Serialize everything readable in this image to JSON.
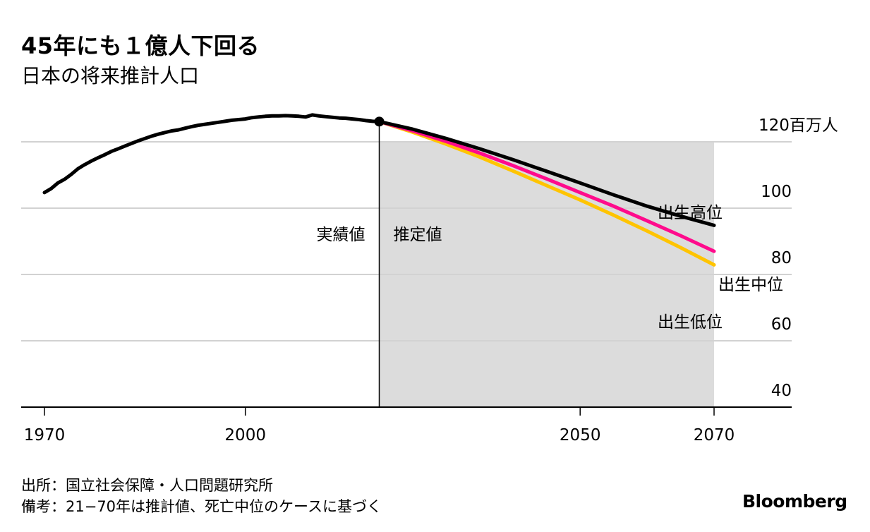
{
  "header": {
    "title": "45年にも１億人下回る",
    "subtitle": "日本の将来推計人口"
  },
  "footer": {
    "source": "出所：国立社会保障・人口問題研究所",
    "note": "備考：21−70年は推計値、死亡中位のケースに基づく",
    "brand": "Bloomberg"
  },
  "chart_data": {
    "type": "line",
    "title": "45年にも１億人下回る",
    "subtitle": "日本の将来推計人口",
    "unit_label": "120百万人",
    "y_ticks": [
      {
        "value": 120,
        "label": "120百万人"
      },
      {
        "value": 100,
        "label": "100"
      },
      {
        "value": 80,
        "label": "80"
      },
      {
        "value": 60,
        "label": "60"
      },
      {
        "value": 40,
        "label": "40"
      }
    ],
    "x_ticks": [
      {
        "value": 1970,
        "label": "1970"
      },
      {
        "value": 2000,
        "label": "2000"
      },
      {
        "value": 2050,
        "label": "2050"
      },
      {
        "value": 2070,
        "label": "2070"
      }
    ],
    "xlim": [
      1966,
      2078
    ],
    "ylim": [
      40,
      120
    ],
    "actual_label": "実績値",
    "projection_label": "推定値",
    "projection_start": 2020,
    "projection_end": 2070,
    "actual": {
      "name": "実績値",
      "color": "#000000",
      "x": [
        1970,
        1971,
        1972,
        1973,
        1974,
        1975,
        1976,
        1977,
        1978,
        1979,
        1980,
        1981,
        1982,
        1983,
        1984,
        1985,
        1986,
        1987,
        1988,
        1989,
        1990,
        1991,
        1992,
        1993,
        1994,
        1995,
        1996,
        1997,
        1998,
        1999,
        2000,
        2001,
        2002,
        2003,
        2004,
        2005,
        2006,
        2007,
        2008,
        2009,
        2010,
        2011,
        2012,
        2013,
        2014,
        2015,
        2016,
        2017,
        2018,
        2019,
        2020
      ],
      "y": [
        104.7,
        105.9,
        107.6,
        108.7,
        110.2,
        111.9,
        113.1,
        114.2,
        115.2,
        116.1,
        117.1,
        117.9,
        118.7,
        119.5,
        120.3,
        121.0,
        121.7,
        122.3,
        122.8,
        123.3,
        123.6,
        124.1,
        124.6,
        125.0,
        125.3,
        125.6,
        125.9,
        126.2,
        126.5,
        126.7,
        126.9,
        127.3,
        127.5,
        127.7,
        127.8,
        127.8,
        127.9,
        127.8,
        127.7,
        127.5,
        128.1,
        127.8,
        127.6,
        127.4,
        127.2,
        127.1,
        126.9,
        126.7,
        126.4,
        126.2,
        126.1
      ]
    },
    "series": [
      {
        "name": "出生高位",
        "color": "#000000",
        "x": [
          2020,
          2025,
          2030,
          2035,
          2040,
          2045,
          2050,
          2055,
          2060,
          2065,
          2070
        ],
        "y": [
          126.1,
          123.8,
          121.0,
          117.9,
          114.6,
          111.1,
          107.6,
          104.0,
          100.6,
          97.6,
          94.8
        ]
      },
      {
        "name": "出生中位",
        "color": "#ff0a8c",
        "x": [
          2020,
          2025,
          2030,
          2035,
          2040,
          2045,
          2050,
          2055,
          2060,
          2065,
          2070
        ],
        "y": [
          126.1,
          123.3,
          120.1,
          116.6,
          112.8,
          108.8,
          104.7,
          100.6,
          96.2,
          91.7,
          87.0
        ]
      },
      {
        "name": "出生低位",
        "color": "#ffc400",
        "x": [
          2020,
          2025,
          2030,
          2035,
          2040,
          2045,
          2050,
          2055,
          2060,
          2065,
          2070
        ],
        "y": [
          126.1,
          122.9,
          119.3,
          115.4,
          111.2,
          106.8,
          102.5,
          97.9,
          93.1,
          88.1,
          82.9
        ]
      }
    ],
    "highlight_point": {
      "x": 2020,
      "y": 126.1,
      "color": "#000000"
    },
    "shading_color": "#dcdcdc",
    "grid_color": "#d2d2d2"
  }
}
